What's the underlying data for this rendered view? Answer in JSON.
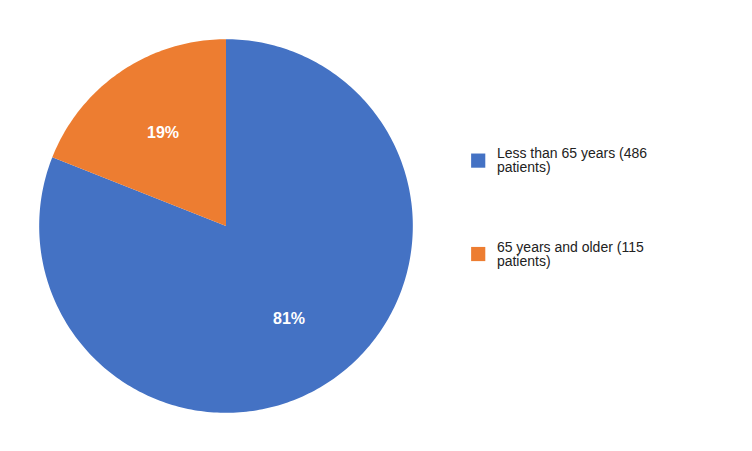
{
  "chart_data": {
    "type": "pie",
    "categories": [
      "Less than 65 years (486\npatients)",
      "65 years and older (115\npatients)"
    ],
    "values": [
      81,
      19
    ],
    "value_labels": [
      "81%",
      "19%"
    ],
    "colors": [
      "#4472C4",
      "#ED7D31"
    ],
    "data_labels": true,
    "legend": "right"
  }
}
